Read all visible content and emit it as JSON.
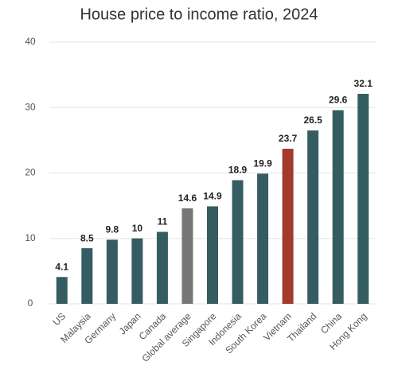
{
  "chart_data": {
    "type": "bar",
    "title": "House price to income ratio, 2024",
    "categories": [
      "US",
      "Malaysia",
      "Germany",
      "Japan",
      "Canada",
      "Global average",
      "Singapore",
      "Indonesia",
      "South Korea",
      "Vietnam",
      "Thailand",
      "China",
      "Hong Kong"
    ],
    "values": [
      4.1,
      8.5,
      9.8,
      10,
      11,
      14.6,
      14.9,
      18.9,
      19.9,
      23.7,
      26.5,
      29.6,
      32.1
    ],
    "colors": [
      "#355d61",
      "#355d61",
      "#355d61",
      "#355d61",
      "#355d61",
      "#777777",
      "#355d61",
      "#355d61",
      "#355d61",
      "#a23a2d",
      "#355d61",
      "#355d61",
      "#355d61"
    ],
    "ylim": [
      0,
      40
    ],
    "yticks": [
      0,
      10,
      20,
      30,
      40
    ],
    "grid": true
  }
}
